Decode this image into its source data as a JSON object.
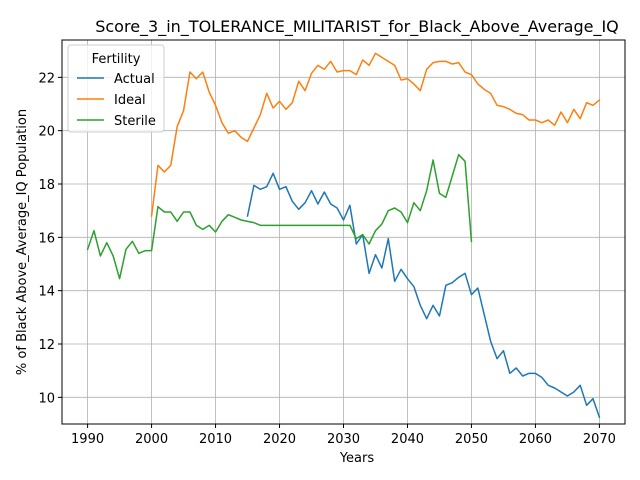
{
  "chart_data": {
    "type": "line",
    "title": "Score_3_in_TOLERANCE_MILITARIST_for_Black_Above_Average_IQ",
    "xlabel": "Years",
    "ylabel": "% of Black Above_Average_IQ Population",
    "xlim": [
      1986.0,
      2074.0
    ],
    "ylim": [
      9.0,
      23.4
    ],
    "xticks": [
      1990,
      2000,
      2010,
      2020,
      2030,
      2040,
      2050,
      2060,
      2070
    ],
    "yticks": [
      10,
      12,
      14,
      16,
      18,
      20,
      22
    ],
    "grid": true,
    "legend": {
      "title": "Fertility",
      "position": "top-left"
    },
    "colors": {
      "Actual": "#1f77b4",
      "Ideal": "#ff7f0e",
      "Sterile": "#2ca02c"
    },
    "series": [
      {
        "name": "Actual",
        "x": [
          2015,
          2016,
          2017,
          2018,
          2019,
          2020,
          2021,
          2022,
          2023,
          2024,
          2025,
          2026,
          2027,
          2028,
          2029,
          2030,
          2031,
          2032,
          2033,
          2034,
          2035,
          2036,
          2037,
          2038,
          2039,
          2040,
          2041,
          2042,
          2043,
          2044,
          2045,
          2046,
          2047,
          2048,
          2049,
          2050,
          2051,
          2052,
          2053,
          2054,
          2055,
          2056,
          2057,
          2058,
          2059,
          2060,
          2061,
          2062,
          2063,
          2064,
          2065,
          2066,
          2067,
          2068,
          2069,
          2070
        ],
        "y": [
          16.8,
          17.95,
          17.8,
          17.9,
          18.4,
          17.8,
          17.9,
          17.35,
          17.05,
          17.3,
          17.75,
          17.25,
          17.7,
          17.25,
          17.1,
          16.65,
          17.2,
          15.75,
          16.1,
          14.65,
          15.35,
          14.85,
          15.95,
          14.35,
          14.8,
          14.45,
          14.15,
          13.45,
          12.95,
          13.45,
          13.05,
          14.2,
          14.3,
          14.5,
          14.65,
          13.85,
          14.1,
          13.1,
          12.1,
          11.45,
          11.75,
          10.9,
          11.1,
          10.8,
          10.9,
          10.9,
          10.75,
          10.45,
          10.35,
          10.2,
          10.05,
          10.2,
          10.45,
          9.7,
          9.95,
          9.25
        ]
      },
      {
        "name": "Ideal",
        "x": [
          2000,
          2001,
          2002,
          2003,
          2004,
          2005,
          2006,
          2007,
          2008,
          2009,
          2010,
          2011,
          2012,
          2013,
          2014,
          2015,
          2016,
          2017,
          2018,
          2019,
          2020,
          2021,
          2022,
          2023,
          2024,
          2025,
          2026,
          2027,
          2028,
          2029,
          2030,
          2031,
          2032,
          2033,
          2034,
          2035,
          2036,
          2037,
          2038,
          2039,
          2040,
          2041,
          2042,
          2043,
          2044,
          2045,
          2046,
          2047,
          2048,
          2049,
          2050,
          2051,
          2052,
          2053,
          2054,
          2055,
          2056,
          2057,
          2058,
          2059,
          2060,
          2061,
          2062,
          2063,
          2064,
          2065,
          2066,
          2067,
          2068,
          2069,
          2070
        ],
        "y": [
          16.8,
          18.7,
          18.45,
          18.7,
          20.15,
          20.75,
          22.2,
          21.95,
          22.2,
          21.45,
          20.95,
          20.3,
          19.9,
          20.0,
          19.75,
          19.6,
          20.1,
          20.6,
          21.4,
          20.85,
          21.1,
          20.8,
          21.05,
          21.85,
          21.5,
          22.15,
          22.45,
          22.3,
          22.6,
          22.2,
          22.25,
          22.25,
          22.1,
          22.65,
          22.45,
          22.9,
          22.75,
          22.6,
          22.45,
          21.9,
          21.95,
          21.75,
          21.5,
          22.3,
          22.55,
          22.6,
          22.6,
          22.5,
          22.55,
          22.2,
          22.1,
          21.75,
          21.55,
          21.4,
          20.95,
          20.9,
          20.8,
          20.65,
          20.6,
          20.4,
          20.4,
          20.3,
          20.4,
          20.2,
          20.7,
          20.3,
          20.8,
          20.45,
          21.05,
          20.95,
          21.15
        ]
      },
      {
        "name": "Sterile",
        "x": [
          1990,
          1991,
          1992,
          1993,
          1994,
          1995,
          1996,
          1997,
          1998,
          1999,
          2000,
          2001,
          2002,
          2003,
          2004,
          2005,
          2006,
          2007,
          2008,
          2009,
          2010,
          2011,
          2012,
          2013,
          2014,
          2015,
          2016,
          2017,
          2018,
          2019,
          2020,
          2021,
          2022,
          2023,
          2024,
          2025,
          2026,
          2027,
          2028,
          2029,
          2030,
          2031,
          2032,
          2033,
          2034,
          2035,
          2036,
          2037,
          2038,
          2039,
          2040,
          2041,
          2042,
          2043,
          2044,
          2045,
          2046,
          2047,
          2048,
          2049,
          2050
        ],
        "y": [
          15.55,
          16.25,
          15.3,
          15.8,
          15.3,
          14.45,
          15.55,
          15.85,
          15.4,
          15.5,
          15.5,
          17.15,
          16.95,
          16.95,
          16.6,
          16.95,
          16.95,
          16.45,
          16.3,
          16.45,
          16.2,
          16.6,
          16.85,
          16.75,
          16.65,
          16.6,
          16.55,
          16.45,
          16.45,
          16.45,
          16.45,
          16.45,
          16.45,
          16.45,
          16.45,
          16.45,
          16.45,
          16.45,
          16.45,
          16.45,
          16.45,
          16.45,
          15.95,
          16.1,
          15.75,
          16.25,
          16.5,
          17.0,
          17.1,
          16.95,
          16.55,
          17.3,
          17.0,
          17.75,
          18.9,
          17.65,
          17.5,
          18.3,
          19.1,
          18.85,
          15.85
        ]
      }
    ]
  }
}
